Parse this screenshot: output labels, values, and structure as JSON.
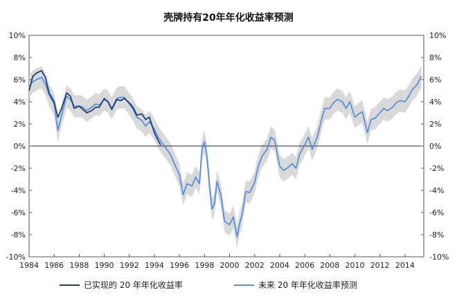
{
  "chart_data": {
    "type": "line",
    "title": "壳牌持有20年年化收益率预测",
    "xlabel": "",
    "ylabel": "",
    "xlim": [
      1984,
      2015.5
    ],
    "ylim": [
      -10,
      10
    ],
    "x_ticks": [
      1984,
      1986,
      1988,
      1990,
      1992,
      1994,
      1996,
      1998,
      2000,
      2002,
      2004,
      2006,
      2008,
      2010,
      2012,
      2014
    ],
    "y_ticks": [
      -10,
      -8,
      -6,
      -4,
      -2,
      0,
      2,
      4,
      6,
      8,
      10
    ],
    "y_tick_labels": [
      "-10%",
      "-8%",
      "-6%",
      "-4%",
      "-2%",
      "0%",
      "2%",
      "4%",
      "6%",
      "8%",
      "10%"
    ],
    "legend_position": "bottom",
    "series": [
      {
        "name": "已实现的 20 年年化收益率",
        "color": "#1f3f73",
        "x": [
          1984.0,
          1984.3,
          1984.6,
          1985.0,
          1985.3,
          1985.6,
          1986.0,
          1986.3,
          1986.6,
          1987.0,
          1987.3,
          1987.6,
          1988.0,
          1988.3,
          1988.6,
          1989.0,
          1989.3,
          1989.6,
          1990.0,
          1990.3,
          1990.6,
          1991.0,
          1991.3,
          1991.6,
          1992.0,
          1992.3,
          1992.6,
          1993.0,
          1993.3,
          1993.6,
          1994.0,
          1994.3,
          1994.5
        ],
        "values": [
          5.0,
          6.3,
          6.6,
          6.8,
          6.2,
          4.8,
          4.0,
          2.6,
          3.4,
          4.8,
          4.5,
          3.4,
          3.6,
          3.3,
          3.0,
          3.2,
          3.5,
          3.5,
          4.3,
          4.0,
          3.3,
          4.2,
          4.1,
          4.3,
          3.9,
          3.5,
          2.8,
          2.9,
          2.4,
          2.6,
          1.2,
          0.5,
          0.1
        ]
      },
      {
        "name": "未来 20 年年化收益率预测",
        "color": "#5b8fd6",
        "x": [
          1984.0,
          1984.3,
          1984.6,
          1985.0,
          1985.3,
          1985.6,
          1986.0,
          1986.3,
          1986.6,
          1987.0,
          1987.3,
          1987.6,
          1988.0,
          1988.3,
          1988.6,
          1989.0,
          1989.3,
          1989.6,
          1990.0,
          1990.3,
          1990.6,
          1991.0,
          1991.3,
          1991.6,
          1992.0,
          1992.3,
          1992.6,
          1993.0,
          1993.3,
          1993.6,
          1994.0,
          1994.3,
          1994.6,
          1995.0,
          1995.3,
          1995.6,
          1996.0,
          1996.3,
          1996.6,
          1997.0,
          1997.3,
          1997.6,
          1997.8,
          1998.0,
          1998.2,
          1998.4,
          1998.6,
          1998.8,
          1999.0,
          1999.3,
          1999.6,
          2000.0,
          2000.3,
          2000.6,
          2000.8,
          2001.0,
          2001.3,
          2001.6,
          2002.0,
          2002.3,
          2002.6,
          2003.0,
          2003.3,
          2003.6,
          2004.0,
          2004.3,
          2004.6,
          2005.0,
          2005.3,
          2005.6,
          2006.0,
          2006.3,
          2006.6,
          2007.0,
          2007.3,
          2007.6,
          2008.0,
          2008.3,
          2008.6,
          2009.0,
          2009.3,
          2009.6,
          2010.0,
          2010.3,
          2010.6,
          2011.0,
          2011.3,
          2011.6,
          2012.0,
          2012.3,
          2012.6,
          2013.0,
          2013.3,
          2013.6,
          2014.0,
          2014.3,
          2014.6,
          2015.0,
          2015.3
        ],
        "values": [
          5.4,
          5.8,
          6.0,
          6.2,
          5.6,
          4.6,
          3.8,
          1.4,
          2.8,
          4.5,
          4.2,
          3.6,
          3.6,
          3.5,
          3.2,
          3.5,
          3.8,
          3.7,
          4.2,
          4.0,
          3.4,
          4.3,
          4.4,
          4.4,
          3.8,
          3.3,
          2.6,
          2.3,
          1.8,
          2.2,
          1.5,
          0.8,
          0.3,
          -0.3,
          -0.8,
          -1.6,
          -2.6,
          -4.4,
          -3.4,
          -3.6,
          -2.8,
          -3.4,
          -0.3,
          0.4,
          -1.0,
          -3.6,
          -5.7,
          -5.2,
          -3.2,
          -4.4,
          -6.8,
          -7.1,
          -6.4,
          -8.2,
          -7.0,
          -6.2,
          -4.1,
          -4.2,
          -3.3,
          -1.8,
          -0.9,
          -0.3,
          0.8,
          0.5,
          -1.8,
          -2.2,
          -2.0,
          -1.6,
          -2.0,
          -0.7,
          0.1,
          0.8,
          -0.3,
          0.8,
          2.2,
          3.4,
          3.4,
          3.9,
          4.2,
          4.0,
          3.4,
          4.0,
          2.6,
          2.9,
          3.1,
          1.2,
          2.4,
          2.5,
          3.0,
          3.4,
          3.2,
          3.5,
          3.9,
          4.1,
          4.0,
          4.5,
          5.1,
          5.6,
          6.3
        ]
      }
    ],
    "band": {
      "name": "confidence-band",
      "color": "#d9d9d9",
      "half_width": 1.0
    }
  }
}
